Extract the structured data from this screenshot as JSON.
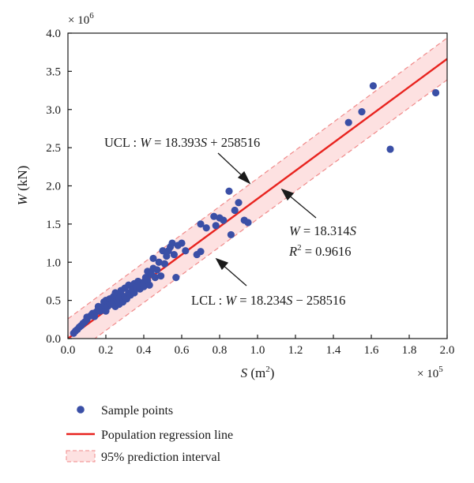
{
  "chart_data": {
    "type": "scatter",
    "xlabel": "S (m²)",
    "ylabel": "W (kN)",
    "x_multiplier": "× 10⁵",
    "y_multiplier": "× 10⁶",
    "x_scale": 100000,
    "y_scale": 1000000,
    "xlim": [
      0,
      2.0
    ],
    "ylim": [
      0,
      4.0
    ],
    "x_ticks": [
      "0.0",
      "0.2",
      "0.4",
      "0.6",
      "0.8",
      "1.0",
      "1.2",
      "1.4",
      "1.6",
      "1.8",
      "2.0"
    ],
    "y_ticks": [
      "0.0",
      "0.5",
      "1.0",
      "1.5",
      "2.0",
      "2.5",
      "3.0",
      "3.5",
      "4.0"
    ],
    "regression": {
      "slope": 18.314,
      "intercept": 0,
      "color": "#e8231f"
    },
    "prediction_interval": {
      "upper_slope": 18.393,
      "upper_intercept": 258516,
      "lower_slope": 18.234,
      "lower_intercept": -258516,
      "fill": "#fde1e1",
      "stroke": "#f08a8a"
    },
    "point_color": "#3a4fa6",
    "series": [
      {
        "name": "Sample points",
        "points": [
          [
            0.03,
            0.07
          ],
          [
            0.04,
            0.1
          ],
          [
            0.05,
            0.12
          ],
          [
            0.06,
            0.15
          ],
          [
            0.07,
            0.17
          ],
          [
            0.08,
            0.2
          ],
          [
            0.09,
            0.22
          ],
          [
            0.1,
            0.25
          ],
          [
            0.1,
            0.28
          ],
          [
            0.12,
            0.3
          ],
          [
            0.13,
            0.33
          ],
          [
            0.14,
            0.29
          ],
          [
            0.15,
            0.35
          ],
          [
            0.16,
            0.38
          ],
          [
            0.16,
            0.42
          ],
          [
            0.17,
            0.36
          ],
          [
            0.18,
            0.4
          ],
          [
            0.19,
            0.44
          ],
          [
            0.19,
            0.48
          ],
          [
            0.2,
            0.36
          ],
          [
            0.2,
            0.5
          ],
          [
            0.21,
            0.42
          ],
          [
            0.22,
            0.47
          ],
          [
            0.22,
            0.52
          ],
          [
            0.23,
            0.45
          ],
          [
            0.24,
            0.55
          ],
          [
            0.24,
            0.48
          ],
          [
            0.25,
            0.6
          ],
          [
            0.25,
            0.42
          ],
          [
            0.26,
            0.5
          ],
          [
            0.27,
            0.53
          ],
          [
            0.27,
            0.45
          ],
          [
            0.28,
            0.58
          ],
          [
            0.28,
            0.63
          ],
          [
            0.29,
            0.48
          ],
          [
            0.3,
            0.55
          ],
          [
            0.3,
            0.66
          ],
          [
            0.31,
            0.52
          ],
          [
            0.32,
            0.6
          ],
          [
            0.32,
            0.7
          ],
          [
            0.33,
            0.57
          ],
          [
            0.34,
            0.64
          ],
          [
            0.35,
            0.72
          ],
          [
            0.35,
            0.6
          ],
          [
            0.36,
            0.68
          ],
          [
            0.37,
            0.75
          ],
          [
            0.38,
            0.65
          ],
          [
            0.38,
            0.7
          ],
          [
            0.4,
            0.74
          ],
          [
            0.4,
            0.68
          ],
          [
            0.41,
            0.8
          ],
          [
            0.42,
            0.76
          ],
          [
            0.42,
            0.88
          ],
          [
            0.43,
            0.7
          ],
          [
            0.44,
            0.84
          ],
          [
            0.45,
            0.92
          ],
          [
            0.45,
            1.05
          ],
          [
            0.46,
            0.8
          ],
          [
            0.47,
            0.9
          ],
          [
            0.48,
            1.0
          ],
          [
            0.49,
            0.82
          ],
          [
            0.5,
            1.15
          ],
          [
            0.51,
            0.98
          ],
          [
            0.52,
            1.08
          ],
          [
            0.53,
            1.15
          ],
          [
            0.54,
            1.2
          ],
          [
            0.55,
            1.25
          ],
          [
            0.56,
            1.1
          ],
          [
            0.57,
            0.8
          ],
          [
            0.58,
            1.22
          ],
          [
            0.6,
            1.25
          ],
          [
            0.62,
            1.15
          ],
          [
            0.68,
            1.1
          ],
          [
            0.7,
            1.14
          ],
          [
            0.7,
            1.5
          ],
          [
            0.73,
            1.45
          ],
          [
            0.77,
            1.6
          ],
          [
            0.78,
            1.48
          ],
          [
            0.8,
            1.58
          ],
          [
            0.82,
            1.55
          ],
          [
            0.85,
            1.93
          ],
          [
            0.86,
            1.36
          ],
          [
            0.88,
            1.68
          ],
          [
            0.9,
            1.78
          ],
          [
            0.93,
            1.55
          ],
          [
            0.95,
            1.52
          ],
          [
            1.48,
            2.83
          ],
          [
            1.55,
            2.97
          ],
          [
            1.61,
            3.31
          ],
          [
            1.7,
            2.48
          ],
          [
            1.94,
            3.22
          ]
        ]
      }
    ],
    "annotations": [
      {
        "id": "ucl",
        "text": "UCL : W = 18.393S + 258516"
      },
      {
        "id": "reg",
        "text": "W = 18.314S"
      },
      {
        "id": "r2",
        "text": "R² = 0.9616"
      },
      {
        "id": "lcl",
        "text": "LCL : W = 18.234S − 258516"
      }
    ],
    "legend": [
      {
        "id": "points",
        "label": "Sample points"
      },
      {
        "id": "line",
        "label": "Population regression line"
      },
      {
        "id": "band",
        "label": "95% prediction interval"
      }
    ]
  }
}
